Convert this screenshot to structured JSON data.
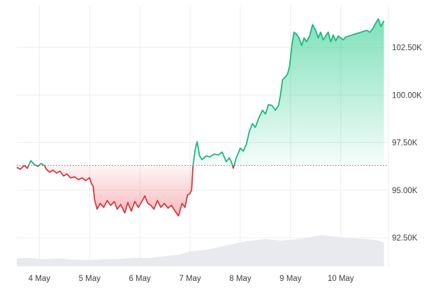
{
  "chart_data": {
    "type": "line",
    "title": "",
    "xlabel": "",
    "ylabel": "",
    "baseline": 96300,
    "ylim": [
      91000,
      104700
    ],
    "xlim": [
      3.55,
      10.95
    ],
    "y_ticks": [
      {
        "value": 92500,
        "label": "92.50K"
      },
      {
        "value": 95000,
        "label": "95.00K"
      },
      {
        "value": 97500,
        "label": "97.50K"
      },
      {
        "value": 100000,
        "label": "100.00K"
      },
      {
        "value": 102500,
        "label": "102.50K"
      }
    ],
    "x_ticks": [
      {
        "value": 4,
        "label": "4 May"
      },
      {
        "value": 5,
        "label": "5 May"
      },
      {
        "value": 6,
        "label": "6 May"
      },
      {
        "value": 7,
        "label": "7 May"
      },
      {
        "value": 8,
        "label": "8 May"
      },
      {
        "value": 9,
        "label": "9 May"
      },
      {
        "value": 10,
        "label": "10 May"
      }
    ],
    "series": [
      {
        "points": [
          [
            3.55,
            96200
          ],
          [
            3.62,
            96100
          ],
          [
            3.7,
            96300
          ],
          [
            3.76,
            96150
          ],
          [
            3.83,
            96550
          ],
          [
            3.9,
            96350
          ],
          [
            3.97,
            96250
          ],
          [
            4.03,
            96400
          ],
          [
            4.1,
            96300
          ],
          [
            4.14,
            96100
          ],
          [
            4.2,
            95950
          ],
          [
            4.27,
            96050
          ],
          [
            4.34,
            95900
          ],
          [
            4.41,
            96000
          ],
          [
            4.48,
            95750
          ],
          [
            4.55,
            95850
          ],
          [
            4.62,
            95650
          ],
          [
            4.7,
            95700
          ],
          [
            4.78,
            95550
          ],
          [
            4.85,
            95650
          ],
          [
            4.92,
            95500
          ],
          [
            5.0,
            95650
          ],
          [
            5.03,
            95400
          ],
          [
            5.07,
            95200
          ],
          [
            5.1,
            94500
          ],
          [
            5.15,
            94000
          ],
          [
            5.21,
            94300
          ],
          [
            5.28,
            94100
          ],
          [
            5.35,
            94450
          ],
          [
            5.42,
            94200
          ],
          [
            5.49,
            94400
          ],
          [
            5.55,
            94000
          ],
          [
            5.62,
            94250
          ],
          [
            5.7,
            93800
          ],
          [
            5.76,
            94350
          ],
          [
            5.83,
            93900
          ],
          [
            5.9,
            94400
          ],
          [
            5.97,
            94100
          ],
          [
            6.05,
            94450
          ],
          [
            6.1,
            94700
          ],
          [
            6.16,
            94300
          ],
          [
            6.22,
            94200
          ],
          [
            6.28,
            94000
          ],
          [
            6.35,
            94450
          ],
          [
            6.42,
            94100
          ],
          [
            6.49,
            94300
          ],
          [
            6.56,
            94050
          ],
          [
            6.63,
            94200
          ],
          [
            6.7,
            93900
          ],
          [
            6.77,
            93650
          ],
          [
            6.84,
            94300
          ],
          [
            6.9,
            94100
          ],
          [
            6.95,
            94750
          ],
          [
            6.99,
            94800
          ],
          [
            7.03,
            95000
          ],
          [
            7.06,
            96300
          ],
          [
            7.1,
            97100
          ],
          [
            7.14,
            97550
          ],
          [
            7.19,
            96800
          ],
          [
            7.24,
            96600
          ],
          [
            7.32,
            96800
          ],
          [
            7.4,
            96750
          ],
          [
            7.48,
            96900
          ],
          [
            7.56,
            96850
          ],
          [
            7.64,
            97000
          ],
          [
            7.72,
            96500
          ],
          [
            7.78,
            96700
          ],
          [
            7.82,
            96500
          ],
          [
            7.86,
            96150
          ],
          [
            7.92,
            96700
          ],
          [
            8.0,
            97200
          ],
          [
            8.06,
            97050
          ],
          [
            8.12,
            97400
          ],
          [
            8.18,
            98100
          ],
          [
            8.24,
            98500
          ],
          [
            8.3,
            98300
          ],
          [
            8.37,
            98800
          ],
          [
            8.44,
            99200
          ],
          [
            8.5,
            99000
          ],
          [
            8.56,
            99500
          ],
          [
            8.63,
            99450
          ],
          [
            8.7,
            99200
          ],
          [
            8.76,
            99450
          ],
          [
            8.8,
            100000
          ],
          [
            8.84,
            100800
          ],
          [
            8.88,
            100900
          ],
          [
            8.94,
            101100
          ],
          [
            8.98,
            101500
          ],
          [
            9.03,
            102700
          ],
          [
            9.07,
            103300
          ],
          [
            9.12,
            103200
          ],
          [
            9.17,
            103000
          ],
          [
            9.22,
            102600
          ],
          [
            9.27,
            103000
          ],
          [
            9.32,
            102800
          ],
          [
            9.38,
            103100
          ],
          [
            9.44,
            103700
          ],
          [
            9.5,
            103400
          ],
          [
            9.55,
            103000
          ],
          [
            9.6,
            103300
          ],
          [
            9.65,
            102900
          ],
          [
            9.7,
            103100
          ],
          [
            9.75,
            103300
          ],
          [
            9.8,
            102800
          ],
          [
            9.85,
            103150
          ],
          [
            9.9,
            102850
          ],
          [
            9.95,
            103100
          ],
          [
            10.0,
            103000
          ],
          [
            10.05,
            102900
          ],
          [
            10.1,
            103050
          ],
          [
            10.16,
            103100
          ],
          [
            10.22,
            103150
          ],
          [
            10.28,
            103200
          ],
          [
            10.34,
            103250
          ],
          [
            10.4,
            103300
          ],
          [
            10.46,
            103350
          ],
          [
            10.52,
            103400
          ],
          [
            10.58,
            103300
          ],
          [
            10.64,
            103500
          ],
          [
            10.7,
            103800
          ],
          [
            10.75,
            104000
          ],
          [
            10.8,
            103600
          ],
          [
            10.86,
            103900
          ]
        ]
      }
    ],
    "volume": [
      [
        3.55,
        0.2
      ],
      [
        3.8,
        0.22
      ],
      [
        4.1,
        0.18
      ],
      [
        4.4,
        0.2
      ],
      [
        4.7,
        0.17
      ],
      [
        5.0,
        0.16
      ],
      [
        5.3,
        0.18
      ],
      [
        5.6,
        0.19
      ],
      [
        5.9,
        0.22
      ],
      [
        6.2,
        0.21
      ],
      [
        6.5,
        0.26
      ],
      [
        6.8,
        0.3
      ],
      [
        7.0,
        0.38
      ],
      [
        7.3,
        0.42
      ],
      [
        7.6,
        0.5
      ],
      [
        7.9,
        0.58
      ],
      [
        8.1,
        0.64
      ],
      [
        8.3,
        0.67
      ],
      [
        8.5,
        0.7
      ],
      [
        8.8,
        0.66
      ],
      [
        9.0,
        0.68
      ],
      [
        9.3,
        0.72
      ],
      [
        9.6,
        0.8
      ],
      [
        9.9,
        0.76
      ],
      [
        10.2,
        0.72
      ],
      [
        10.5,
        0.7
      ],
      [
        10.75,
        0.66
      ],
      [
        10.86,
        0.6
      ]
    ],
    "grid": true,
    "legend": "none",
    "colors": {
      "up_line": "#16b97a",
      "down_line": "#d9363e",
      "up_fill": "#16c784",
      "down_fill": "#ea3943",
      "grid": "#ebedf0",
      "baseline": "#6b7078",
      "volume": "#e8eaee"
    }
  }
}
